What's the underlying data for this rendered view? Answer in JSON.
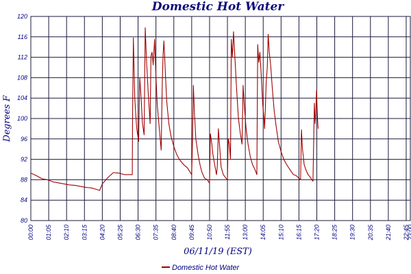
{
  "chart_data": {
    "type": "line",
    "title": "Domestic Hot Water",
    "xlabel": "06/11/19 (EST)",
    "ylabel": "Degrees F",
    "ylim": [
      80,
      120
    ],
    "y_ticks": [
      "80",
      "84",
      "88",
      "92",
      "96",
      "100",
      "104",
      "108",
      "112",
      "116",
      "120"
    ],
    "xlim_minutes": [
      0,
      1380
    ],
    "x_ticks": [
      "00:00",
      "01:05",
      "02:10",
      "03:15",
      "04:20",
      "05:25",
      "06:30",
      "07:35",
      "08:40",
      "09:45",
      "10:50",
      "11:55",
      "13:00",
      "14:05",
      "15:10",
      "16:15",
      "17:20",
      "18:25",
      "19:30",
      "20:35",
      "21:40",
      "22:45",
      "23:00"
    ],
    "grid": true,
    "legend_position": "bottom-center",
    "color": "#a00000",
    "series": [
      {
        "name": "Domestic Hot Water",
        "points": [
          [
            0,
            89.3
          ],
          [
            20,
            88.8
          ],
          [
            40,
            88.2
          ],
          [
            60,
            88.0
          ],
          [
            80,
            87.6
          ],
          [
            100,
            87.4
          ],
          [
            120,
            87.2
          ],
          [
            140,
            87.0
          ],
          [
            160,
            86.9
          ],
          [
            180,
            86.7
          ],
          [
            200,
            86.5
          ],
          [
            220,
            86.4
          ],
          [
            240,
            86.1
          ],
          [
            250,
            85.9
          ],
          [
            260,
            87.2
          ],
          [
            280,
            88.4
          ],
          [
            300,
            89.4
          ],
          [
            320,
            89.3
          ],
          [
            340,
            89.0
          ],
          [
            360,
            89.0
          ],
          [
            369,
            89.0
          ],
          [
            370,
            100.0
          ],
          [
            373,
            115.8
          ],
          [
            378,
            104.0
          ],
          [
            385,
            98.0
          ],
          [
            392,
            95.5
          ],
          [
            396,
            108.0
          ],
          [
            401,
            104.0
          ],
          [
            406,
            99.0
          ],
          [
            412,
            96.8
          ],
          [
            416,
            117.8
          ],
          [
            421,
            111.0
          ],
          [
            428,
            104.0
          ],
          [
            434,
            99.0
          ],
          [
            437,
            112.2
          ],
          [
            441,
            113.0
          ],
          [
            445,
            110.5
          ],
          [
            450,
            115.5
          ],
          [
            455,
            108.0
          ],
          [
            460,
            102.5
          ],
          [
            468,
            97.5
          ],
          [
            474,
            93.8
          ],
          [
            478,
            107.0
          ],
          [
            481,
            112.5
          ],
          [
            484,
            115.2
          ],
          [
            488,
            110.5
          ],
          [
            494,
            103.5
          ],
          [
            502,
            99.0
          ],
          [
            510,
            96.5
          ],
          [
            520,
            94.5
          ],
          [
            530,
            93.0
          ],
          [
            540,
            92.0
          ],
          [
            555,
            91.0
          ],
          [
            570,
            90.3
          ],
          [
            585,
            89.0
          ],
          [
            588,
            96.0
          ],
          [
            591,
            106.5
          ],
          [
            595,
            101.0
          ],
          [
            600,
            96.0
          ],
          [
            608,
            93.0
          ],
          [
            615,
            91.0
          ],
          [
            622,
            89.5
          ],
          [
            632,
            88.3
          ],
          [
            642,
            88.0
          ],
          [
            650,
            87.3
          ],
          [
            653,
            97.0
          ],
          [
            657,
            95.5
          ],
          [
            662,
            93.0
          ],
          [
            670,
            90.5
          ],
          [
            675,
            89.0
          ],
          [
            678,
            90.5
          ],
          [
            682,
            98.0
          ],
          [
            686,
            95.0
          ],
          [
            692,
            90.5
          ],
          [
            700,
            89.0
          ],
          [
            710,
            88.3
          ],
          [
            715,
            88.0
          ],
          [
            718,
            96.0
          ],
          [
            722,
            95.0
          ],
          [
            726,
            92.0
          ],
          [
            729,
            115.5
          ],
          [
            733,
            112.0
          ],
          [
            737,
            117.0
          ],
          [
            742,
            112.0
          ],
          [
            748,
            106.0
          ],
          [
            755,
            100.0
          ],
          [
            762,
            97.0
          ],
          [
            768,
            95.0
          ],
          [
            772,
            106.5
          ],
          [
            777,
            102.0
          ],
          [
            783,
            98.0
          ],
          [
            790,
            95.0
          ],
          [
            798,
            92.5
          ],
          [
            806,
            91.0
          ],
          [
            815,
            90.0
          ],
          [
            822,
            89.0
          ],
          [
            825,
            114.5
          ],
          [
            829,
            111.0
          ],
          [
            833,
            113.0
          ],
          [
            838,
            108.5
          ],
          [
            843,
            103.0
          ],
          [
            848,
            100.0
          ],
          [
            850,
            98.0
          ],
          [
            853,
            102.0
          ],
          [
            856,
            107.0
          ],
          [
            860,
            110.0
          ],
          [
            863,
            116.5
          ],
          [
            867,
            113.0
          ],
          [
            872,
            110.5
          ],
          [
            878,
            106.0
          ],
          [
            885,
            101.5
          ],
          [
            892,
            98.5
          ],
          [
            900,
            95.5
          ],
          [
            910,
            93.5
          ],
          [
            920,
            92.0
          ],
          [
            930,
            91.0
          ],
          [
            942,
            90.0
          ],
          [
            955,
            89.0
          ],
          [
            965,
            88.8
          ],
          [
            975,
            88.3
          ],
          [
            981,
            88.0
          ],
          [
            984,
            97.8
          ],
          [
            988,
            94.0
          ],
          [
            994,
            91.0
          ],
          [
            1000,
            90.0
          ],
          [
            1008,
            89.0
          ],
          [
            1016,
            88.5
          ],
          [
            1022,
            88.0
          ],
          [
            1026,
            87.7
          ],
          [
            1031,
            103.0
          ],
          [
            1034,
            99.0
          ],
          [
            1036,
            101.0
          ],
          [
            1039,
            105.5
          ],
          [
            1042,
            100.5
          ],
          [
            1045,
            98.0
          ]
        ]
      }
    ]
  }
}
